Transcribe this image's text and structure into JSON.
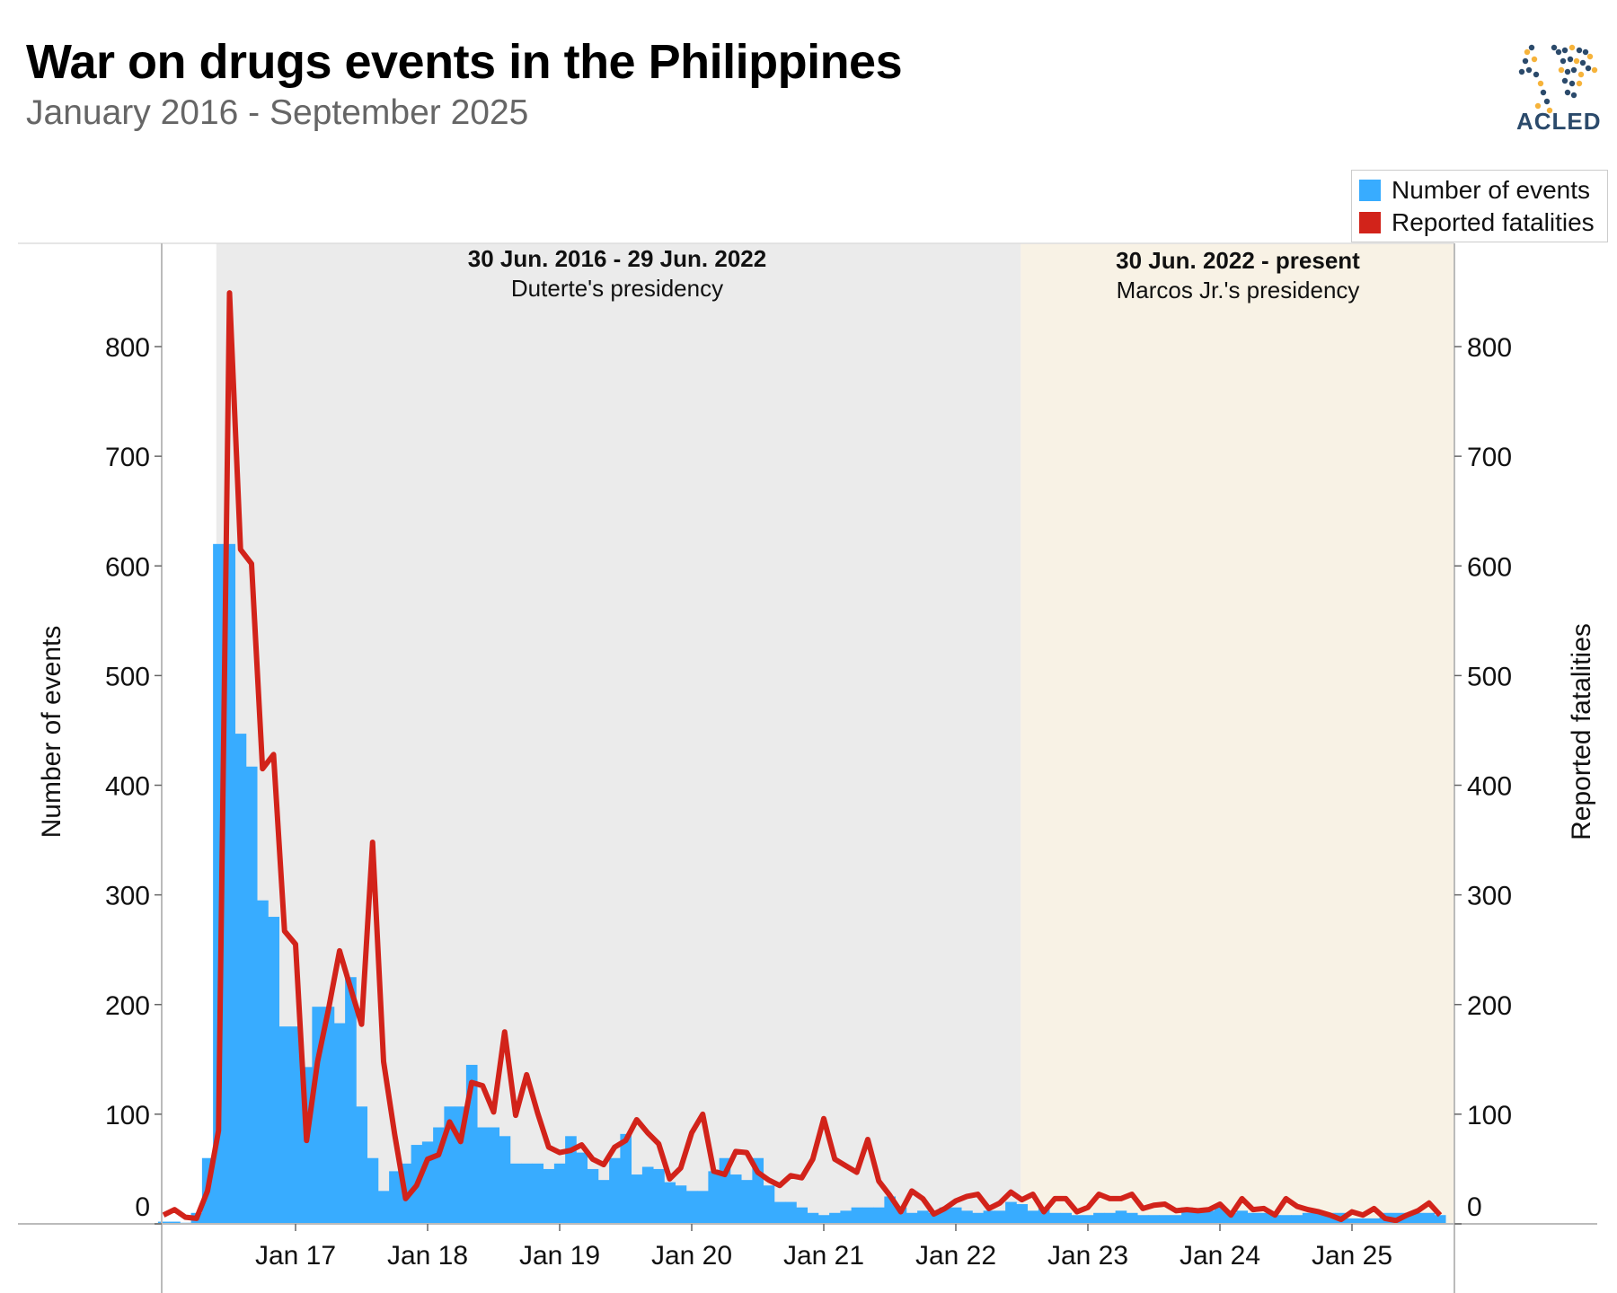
{
  "header": {
    "title": "War on drugs events in the Philippines",
    "subtitle": "January 2016 - September 2025",
    "logo_text": "ACLED"
  },
  "chart_data": {
    "type": "bar+line",
    "title": "War on drugs events in the Philippines",
    "subtitle": "January 2016 - September 2025",
    "x_start": "2016-01",
    "x_end": "2025-09",
    "x_interval": "month",
    "x_tick_labels": [
      "Jan 17",
      "Jan 18",
      "Jan 19",
      "Jan 20",
      "Jan 21",
      "Jan 22",
      "Jan 23",
      "Jan 24",
      "Jan 25"
    ],
    "ylabel_left": "Number of events",
    "ylabel_right": "Reported fatalities",
    "y_ticks": [
      0,
      100,
      200,
      300,
      400,
      500,
      600,
      700,
      800
    ],
    "ylim": [
      0,
      890
    ],
    "grid": false,
    "legend_position": "top-right",
    "legend": [
      "Number of events",
      "Reported fatalities"
    ],
    "colors": {
      "events": "#38ACFF",
      "fatalities": "#D2231A",
      "duterte_band": "#EBEBEB",
      "marcos_band": "#F8F2E5"
    },
    "periods": [
      {
        "start": "2016-06-30",
        "end": "2022-06-29",
        "label_bold": "30 Jun. 2016 - 29 Jun. 2022",
        "label": "Duterte's presidency"
      },
      {
        "start": "2022-06-30",
        "end": "present",
        "label_bold": "30 Jun. 2022 - present",
        "label": "Marcos Jr.'s presidency"
      }
    ],
    "series": [
      {
        "name": "Number of events",
        "type": "bar",
        "axis": "left",
        "values": [
          2,
          2,
          1,
          10,
          60,
          620,
          620,
          447,
          417,
          295,
          280,
          180,
          180,
          143,
          198,
          198,
          183,
          225,
          107,
          60,
          30,
          48,
          55,
          72,
          75,
          88,
          107,
          107,
          145,
          88,
          88,
          80,
          55,
          55,
          55,
          50,
          55,
          80,
          65,
          50,
          40,
          60,
          82,
          45,
          52,
          50,
          38,
          35,
          30,
          30,
          48,
          60,
          45,
          40,
          60,
          35,
          20,
          20,
          15,
          10,
          8,
          10,
          12,
          15,
          15,
          15,
          25,
          15,
          10,
          12,
          10,
          15,
          15,
          12,
          10,
          12,
          12,
          20,
          18,
          12,
          15,
          10,
          10,
          8,
          8,
          10,
          10,
          12,
          10,
          8,
          8,
          8,
          8,
          15,
          12,
          12,
          15,
          10,
          12,
          10,
          10,
          8,
          8,
          8,
          10,
          10,
          10,
          10,
          5,
          5,
          5,
          10,
          10,
          10,
          10,
          10,
          8
        ]
      },
      {
        "name": "Reported fatalities",
        "type": "line",
        "axis": "right",
        "values": [
          8,
          13,
          6,
          5,
          30,
          85,
          849,
          615,
          602,
          415,
          428,
          267,
          255,
          76,
          148,
          196,
          249,
          215,
          182,
          348,
          148,
          82,
          23,
          35,
          59,
          63,
          93,
          75,
          129,
          126,
          102,
          175,
          99,
          136,
          101,
          70,
          65,
          67,
          72,
          59,
          54,
          70,
          76,
          95,
          83,
          73,
          41,
          51,
          83,
          100,
          48,
          45,
          66,
          65,
          47,
          40,
          35,
          44,
          42,
          59,
          96,
          59,
          53,
          47,
          77,
          39,
          26,
          11,
          30,
          23,
          9,
          14,
          21,
          25,
          27,
          14,
          19,
          29,
          22,
          27,
          11,
          23,
          23,
          11,
          15,
          27,
          23,
          23,
          27,
          14,
          17,
          18,
          12,
          13,
          12,
          13,
          18,
          8,
          23,
          13,
          14,
          8,
          23,
          16,
          13,
          11,
          8,
          4,
          11,
          8,
          14,
          5,
          3,
          8,
          12,
          19,
          8
        ]
      }
    ]
  }
}
